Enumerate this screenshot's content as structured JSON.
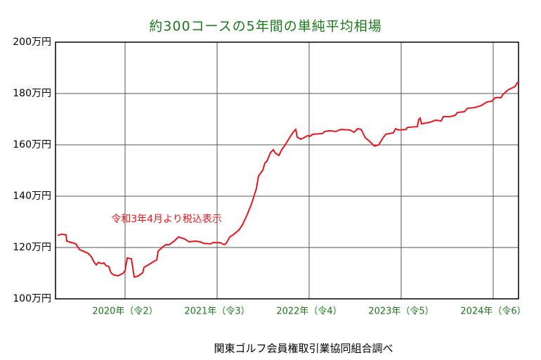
{
  "chart_data": {
    "type": "line",
    "title": "約300コースの5年間の単純平均相場",
    "annotation": "令和3年4月より税込表示",
    "source": "関東ゴルフ会員権取引業協同組合調べ",
    "grid": true,
    "xlim": [
      2019.244,
      2024.275
    ],
    "xticks": [
      {
        "value": 2020,
        "label": "2020年（令2）"
      },
      {
        "value": 2021,
        "label": "2021年（令3）"
      },
      {
        "value": 2022,
        "label": "2022年（令4）"
      },
      {
        "value": 2023,
        "label": "2023年（令5）"
      },
      {
        "value": 2024,
        "label": "2024年（令6）"
      }
    ],
    "ylim": [
      100,
      200
    ],
    "yticks": [
      {
        "value": 100,
        "label": "100万円"
      },
      {
        "value": 120,
        "label": "120万円"
      },
      {
        "value": 140,
        "label": "140万円"
      },
      {
        "value": 160,
        "label": "160万円"
      },
      {
        "value": 180,
        "label": "180万円"
      },
      {
        "value": 200,
        "label": "200万円"
      }
    ],
    "x": [
      2019.267,
      2019.313,
      2019.359,
      2019.366,
      2019.466,
      2019.504,
      2019.595,
      2019.634,
      2019.664,
      2019.687,
      2019.71,
      2019.748,
      2019.771,
      2019.794,
      2019.824,
      2019.847,
      2019.878,
      2019.924,
      2019.977,
      2020.0,
      2020.023,
      2020.069,
      2020.099,
      2020.137,
      2020.191,
      2020.206,
      2020.26,
      2020.321,
      2020.344,
      2020.359,
      2020.412,
      2020.443,
      2020.481,
      2020.534,
      2020.58,
      2020.649,
      2020.695,
      2020.763,
      2020.817,
      2020.855,
      2020.931,
      2020.954,
      2021.031,
      2021.076,
      2021.099,
      2021.137,
      2021.183,
      2021.237,
      2021.275,
      2021.328,
      2021.374,
      2021.427,
      2021.45,
      2021.496,
      2021.519,
      2021.542,
      2021.58,
      2021.611,
      2021.634,
      2021.672,
      2021.702,
      2021.74,
      2021.786,
      2021.832,
      2021.855,
      2021.87,
      2021.908,
      2021.939,
      2021.985,
      2022.008,
      2022.038,
      2022.145,
      2022.168,
      2022.221,
      2022.29,
      2022.344,
      2022.443,
      2022.489,
      2022.527,
      2022.565,
      2022.611,
      2022.656,
      2022.71,
      2022.756,
      2022.802,
      2022.832,
      2022.916,
      2022.939,
      2022.969,
      2023.053,
      2023.069,
      2023.176,
      2023.191,
      2023.206,
      2023.221,
      2023.313,
      2023.374,
      2023.435,
      2023.458,
      2023.534,
      2023.588,
      2023.611,
      2023.687,
      2023.718,
      2023.794,
      2023.87,
      2023.931,
      2023.985,
      2024.023,
      2024.084,
      2024.107,
      2024.16,
      2024.237,
      2024.26,
      2024.275
    ],
    "series": [
      {
        "color": "#e8141c",
        "values": [
          124.7,
          125.2,
          124.9,
          122.5,
          121.4,
          119.2,
          117.8,
          116.4,
          114.2,
          113.2,
          114.2,
          113.7,
          114.0,
          112.9,
          112.6,
          110.1,
          109.3,
          109.0,
          109.9,
          111.0,
          115.9,
          115.6,
          108.5,
          108.8,
          110.1,
          112.3,
          113.4,
          114.8,
          115.1,
          118.6,
          120.3,
          121.1,
          121.1,
          122.5,
          124.1,
          123.3,
          122.2,
          122.5,
          122.2,
          121.6,
          121.4,
          121.9,
          121.9,
          121.1,
          121.6,
          124.1,
          125.2,
          126.8,
          128.8,
          132.9,
          137.0,
          143.0,
          147.9,
          150.1,
          152.9,
          153.7,
          157.0,
          158.1,
          156.7,
          155.9,
          158.1,
          160.0,
          162.7,
          165.2,
          166.0,
          163.0,
          162.2,
          162.7,
          163.6,
          163.3,
          164.1,
          164.4,
          165.2,
          165.5,
          165.2,
          166.0,
          165.8,
          164.9,
          166.3,
          166.0,
          162.7,
          161.4,
          159.5,
          160.0,
          162.7,
          164.1,
          164.7,
          166.3,
          165.8,
          166.0,
          166.8,
          167.1,
          169.9,
          170.4,
          168.2,
          168.8,
          169.6,
          169.3,
          171.0,
          171.0,
          171.5,
          172.6,
          172.9,
          174.2,
          174.5,
          175.3,
          176.7,
          177.0,
          178.4,
          178.4,
          179.7,
          181.4,
          182.7,
          184.1,
          184.7
        ]
      }
    ]
  }
}
